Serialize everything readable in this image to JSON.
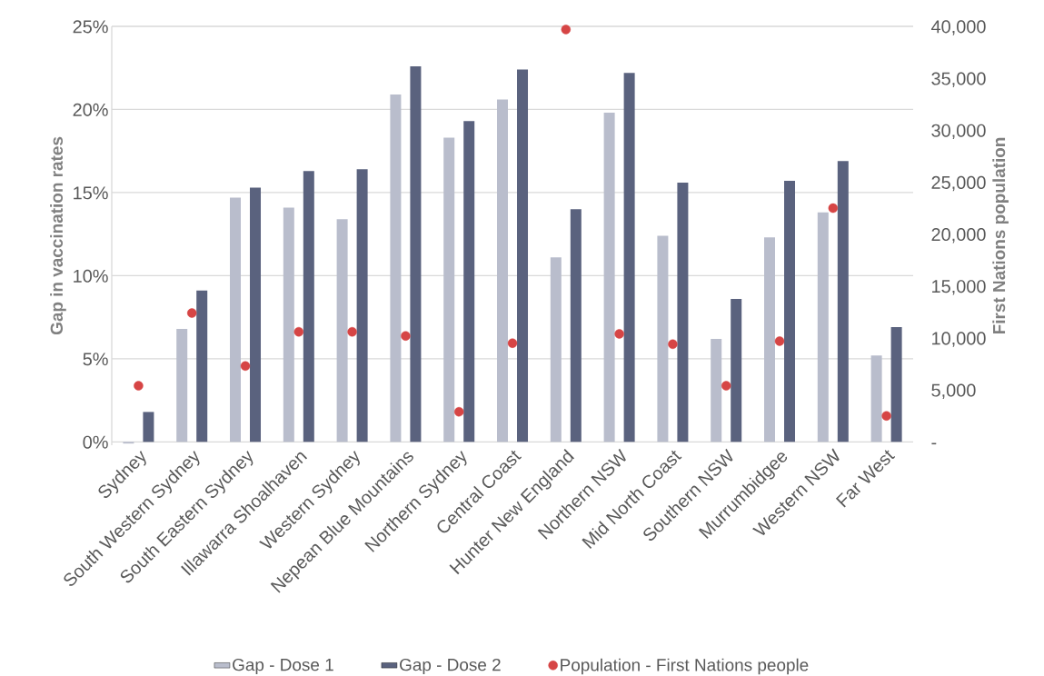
{
  "chart_data": {
    "type": "bar",
    "categories": [
      "Sydney",
      "South Western Sydney",
      "South Eastern Sydney",
      "Illawarra Shoalhaven",
      "Western Sydney",
      "Nepean Blue Mountains",
      "Northern Sydney",
      "Central Coast",
      "Hunter New England",
      "Northern NSW",
      "Mid North Coast",
      "Southern NSW",
      "Murrumbidgee",
      "Western NSW",
      "Far West"
    ],
    "series": [
      {
        "name": "Gap - Dose 1",
        "color": "#b9bdcc",
        "values": [
          -0.1,
          6.8,
          14.7,
          14.1,
          13.4,
          20.9,
          18.3,
          20.6,
          11.1,
          19.8,
          12.4,
          6.2,
          12.3,
          13.8,
          5.2
        ]
      },
      {
        "name": "Gap - Dose 2",
        "color": "#5a627e",
        "values": [
          1.8,
          9.1,
          15.3,
          16.3,
          16.4,
          22.6,
          19.3,
          22.4,
          14.0,
          22.2,
          15.6,
          8.6,
          15.7,
          16.9,
          6.9
        ]
      },
      {
        "name": "Population - First Nations people",
        "color": "#d64545",
        "type": "scatter",
        "axis": "y2",
        "values": [
          5400,
          12400,
          7300,
          10600,
          10600,
          10200,
          2900,
          9500,
          39700,
          10400,
          9400,
          5400,
          9700,
          22500,
          2500
        ]
      }
    ],
    "ylabel": "Gap in vaccination rates",
    "y2label": "First Nations population",
    "ylim": [
      -0.2,
      25
    ],
    "yticks": [
      {
        "value": 0,
        "label": "0%"
      },
      {
        "value": 5,
        "label": "5%"
      },
      {
        "value": 10,
        "label": "10%"
      },
      {
        "value": 15,
        "label": "15%"
      },
      {
        "value": 20,
        "label": "20%"
      },
      {
        "value": 25,
        "label": "25%"
      }
    ],
    "y2lim": [
      -320,
      40000
    ],
    "y2ticks": [
      {
        "value": 0,
        "label": "-"
      },
      {
        "value": 5000,
        "label": "5,000"
      },
      {
        "value": 10000,
        "label": "10,000"
      },
      {
        "value": 15000,
        "label": "15,000"
      },
      {
        "value": 20000,
        "label": "20,000"
      },
      {
        "value": 25000,
        "label": "25,000"
      },
      {
        "value": 30000,
        "label": "30,000"
      },
      {
        "value": 35000,
        "label": "35,000"
      },
      {
        "value": 40000,
        "label": "40,000"
      }
    ],
    "grid": "y",
    "legend": "bottom",
    "marker": "circle"
  }
}
